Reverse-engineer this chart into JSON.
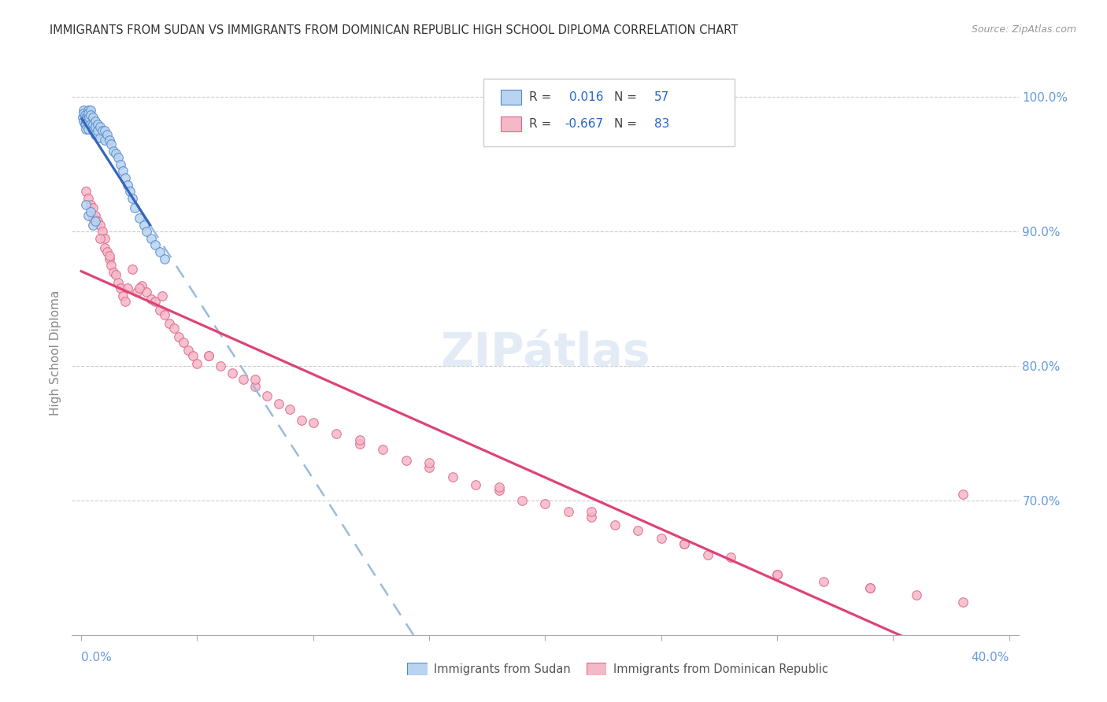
{
  "title": "IMMIGRANTS FROM SUDAN VS IMMIGRANTS FROM DOMINICAN REPUBLIC HIGH SCHOOL DIPLOMA CORRELATION CHART",
  "source": "Source: ZipAtlas.com",
  "ylabel": "High School Diploma",
  "legend_label_1": "Immigrants from Sudan",
  "legend_label_2": "Immigrants from Dominican Republic",
  "R1": 0.016,
  "N1": 57,
  "R2": -0.667,
  "N2": 83,
  "color_sudan_fill": "#b8d4f0",
  "color_sudan_edge": "#5588cc",
  "color_dr_fill": "#f5b8c8",
  "color_dr_edge": "#dd6688",
  "color_sudan_line_solid": "#3366bb",
  "color_sudan_line_dashed": "#99bbdd",
  "color_dr_line": "#dd4477",
  "color_right_axis": "#6699dd",
  "color_title": "#333333",
  "color_source": "#999999",
  "watermark": "ZIPátlas",
  "xlim_min": 0.0,
  "xlim_max": 0.4,
  "ylim_min": 0.6,
  "ylim_max": 1.02,
  "right_yticks": [
    0.7,
    0.8,
    0.9,
    1.0
  ],
  "right_yticklabels": [
    "70.0%",
    "80.0%",
    "90.0%",
    "100.0%"
  ],
  "sudan_x": [
    0.0005,
    0.001,
    0.001,
    0.001,
    0.0015,
    0.0015,
    0.002,
    0.002,
    0.002,
    0.002,
    0.0025,
    0.003,
    0.003,
    0.003,
    0.003,
    0.0035,
    0.004,
    0.004,
    0.004,
    0.005,
    0.005,
    0.005,
    0.006,
    0.006,
    0.006,
    0.007,
    0.007,
    0.008,
    0.008,
    0.009,
    0.01,
    0.01,
    0.011,
    0.012,
    0.013,
    0.014,
    0.015,
    0.016,
    0.017,
    0.018,
    0.019,
    0.02,
    0.021,
    0.022,
    0.023,
    0.025,
    0.027,
    0.028,
    0.03,
    0.032,
    0.034,
    0.036,
    0.005,
    0.003,
    0.002,
    0.004,
    0.006
  ],
  "sudan_y": [
    0.985,
    0.99,
    0.988,
    0.982,
    0.987,
    0.98,
    0.985,
    0.983,
    0.98,
    0.976,
    0.985,
    0.99,
    0.988,
    0.982,
    0.976,
    0.985,
    0.99,
    0.987,
    0.98,
    0.985,
    0.98,
    0.975,
    0.982,
    0.978,
    0.972,
    0.98,
    0.975,
    0.978,
    0.97,
    0.975,
    0.975,
    0.968,
    0.972,
    0.968,
    0.965,
    0.96,
    0.958,
    0.955,
    0.95,
    0.945,
    0.94,
    0.935,
    0.93,
    0.925,
    0.918,
    0.91,
    0.905,
    0.9,
    0.895,
    0.89,
    0.885,
    0.88,
    0.905,
    0.912,
    0.92,
    0.915,
    0.908
  ],
  "dr_x": [
    0.002,
    0.003,
    0.004,
    0.005,
    0.005,
    0.006,
    0.007,
    0.008,
    0.009,
    0.01,
    0.01,
    0.011,
    0.012,
    0.013,
    0.014,
    0.015,
    0.016,
    0.017,
    0.018,
    0.019,
    0.02,
    0.022,
    0.024,
    0.026,
    0.028,
    0.03,
    0.032,
    0.034,
    0.036,
    0.038,
    0.04,
    0.042,
    0.044,
    0.046,
    0.048,
    0.05,
    0.055,
    0.06,
    0.065,
    0.07,
    0.075,
    0.08,
    0.085,
    0.09,
    0.095,
    0.1,
    0.11,
    0.12,
    0.13,
    0.14,
    0.15,
    0.16,
    0.17,
    0.18,
    0.19,
    0.2,
    0.21,
    0.22,
    0.23,
    0.24,
    0.25,
    0.26,
    0.27,
    0.28,
    0.3,
    0.32,
    0.34,
    0.36,
    0.38,
    0.008,
    0.012,
    0.025,
    0.035,
    0.055,
    0.075,
    0.12,
    0.15,
    0.18,
    0.22,
    0.26,
    0.3,
    0.34,
    0.38
  ],
  "dr_y": [
    0.93,
    0.925,
    0.92,
    0.918,
    0.91,
    0.912,
    0.908,
    0.905,
    0.9,
    0.895,
    0.888,
    0.885,
    0.88,
    0.875,
    0.87,
    0.868,
    0.862,
    0.858,
    0.852,
    0.848,
    0.858,
    0.872,
    0.855,
    0.86,
    0.855,
    0.85,
    0.848,
    0.842,
    0.838,
    0.832,
    0.828,
    0.822,
    0.818,
    0.812,
    0.808,
    0.802,
    0.808,
    0.8,
    0.795,
    0.79,
    0.785,
    0.778,
    0.772,
    0.768,
    0.76,
    0.758,
    0.75,
    0.742,
    0.738,
    0.73,
    0.725,
    0.718,
    0.712,
    0.708,
    0.7,
    0.698,
    0.692,
    0.688,
    0.682,
    0.678,
    0.672,
    0.668,
    0.66,
    0.658,
    0.645,
    0.64,
    0.635,
    0.63,
    0.625,
    0.895,
    0.882,
    0.858,
    0.852,
    0.808,
    0.79,
    0.745,
    0.728,
    0.71,
    0.692,
    0.668,
    0.645,
    0.635,
    0.705
  ]
}
